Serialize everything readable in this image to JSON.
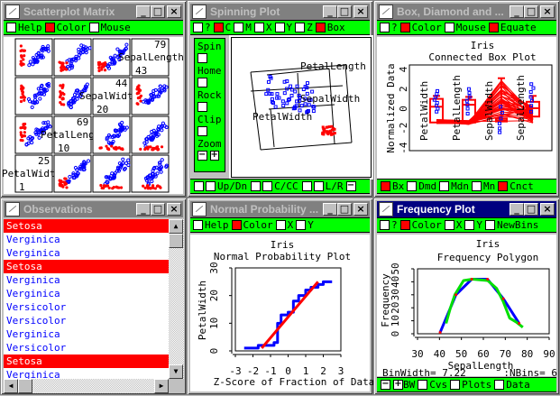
{
  "scatter": {
    "title": "Scatterplot Matrix",
    "options": [
      {
        "label": "Help",
        "checked": false
      },
      {
        "label": "Color",
        "checked": true
      },
      {
        "label": "Mouse",
        "checked": false
      }
    ],
    "variables": [
      {
        "name": "SepalLength",
        "max": "79",
        "min": "43"
      },
      {
        "name": "SepalWidth",
        "max": "44",
        "min": "20"
      },
      {
        "name": "PetalLength",
        "max": "69",
        "min": "10"
      },
      {
        "name": "PetalWidth",
        "max": "25",
        "min": "1"
      }
    ]
  },
  "spin": {
    "title": "Spinning Plot",
    "options": [
      {
        "label": "?",
        "checked": false
      },
      {
        "label": "C",
        "checked": true
      },
      {
        "label": "M",
        "checked": false
      },
      {
        "label": "X",
        "checked": false
      },
      {
        "label": "Y",
        "checked": false
      },
      {
        "label": "Z",
        "checked": false
      },
      {
        "label": "Box",
        "checked": true
      }
    ],
    "controls": [
      "Spin",
      "Home",
      "Rock",
      "Clip"
    ],
    "zoom_label": "Zoom",
    "axis_labels": {
      "x": "PetalLength",
      "y": "SepalWidth",
      "z": "PetalWidth"
    },
    "bottom": [
      "Up/Dn",
      "C/CC",
      "L/R"
    ]
  },
  "box": {
    "title": "Box, Diamond and ...",
    "options": [
      {
        "label": "?",
        "checked": false
      },
      {
        "label": "Color",
        "checked": true
      },
      {
        "label": "Mouse",
        "checked": false
      },
      {
        "label": "Equate",
        "checked": true
      }
    ],
    "bottom": [
      {
        "label": "Bx",
        "checked": true
      },
      {
        "label": "Dmd",
        "checked": false
      },
      {
        "label": "Mdn",
        "checked": false
      },
      {
        "label": "Mn",
        "checked": false
      },
      {
        "label": "Cnct",
        "checked": true
      }
    ]
  },
  "observations": {
    "title": "Observations",
    "items": [
      {
        "label": "Setosa",
        "selected": true
      },
      {
        "label": "Verginica",
        "selected": false
      },
      {
        "label": "Verginica",
        "selected": false
      },
      {
        "label": "Setosa",
        "selected": true
      },
      {
        "label": "Verginica",
        "selected": false
      },
      {
        "label": "Verginica",
        "selected": false
      },
      {
        "label": "Versicolor",
        "selected": false
      },
      {
        "label": "Versicolor",
        "selected": false
      },
      {
        "label": "Verginica",
        "selected": false
      },
      {
        "label": "Versicolor",
        "selected": false
      },
      {
        "label": "Setosa",
        "selected": true
      },
      {
        "label": "Verginica",
        "selected": false
      }
    ]
  },
  "normal": {
    "title": "Normal Probability ...",
    "options": [
      {
        "label": "Help",
        "checked": false
      },
      {
        "label": "Color",
        "checked": true
      },
      {
        "label": "X",
        "checked": false
      },
      {
        "label": "Y",
        "checked": false
      }
    ]
  },
  "freq": {
    "title": "Frequency Plot",
    "options": [
      {
        "label": "?",
        "checked": false
      },
      {
        "label": "Color",
        "checked": true
      },
      {
        "label": "X",
        "checked": false
      },
      {
        "label": "Y",
        "checked": false
      },
      {
        "label": "NewBins",
        "checked": false
      }
    ],
    "binwidth": "BinWidth= 7.22",
    "nbins": ":NBins= 6",
    "bottom": [
      {
        "label": "BW",
        "kind": "plus"
      },
      {
        "label": "Cvs",
        "kind": "check"
      },
      {
        "label": "Plots",
        "kind": "check"
      },
      {
        "label": "Data",
        "kind": "check"
      }
    ]
  },
  "colors": {
    "setosa": "#ff0000",
    "other": "#0000ff",
    "smooth": "#00e000",
    "toolbar": "#00ff00"
  },
  "chart_data": [
    {
      "id": "box",
      "type": "box",
      "title": "Iris",
      "subtitle": "Connected Box Plot",
      "ylabel": "Normalized Data",
      "yticks": [
        -4,
        -2,
        0,
        2,
        4
      ],
      "ylim": [
        -4,
        4
      ],
      "categories": [
        "PetalWidth",
        "PetalLength",
        "SepalWidth",
        "SepalLength"
      ],
      "boxes": [
        {
          "whisker_low": -1.5,
          "q1": -1.4,
          "median": 0.2,
          "q3": 1.0,
          "whisker_high": 1.3,
          "points": [
            1.8,
            1.5,
            1.2,
            0.9,
            0.6,
            0.3,
            0.0,
            -0.3
          ]
        },
        {
          "whisker_low": -1.5,
          "q1": -1.4,
          "median": 0.4,
          "q3": 0.9,
          "whisker_high": 1.2,
          "points": [
            2.0,
            1.6,
            1.2,
            0.8,
            0.4,
            0.0,
            -0.5
          ]
        },
        {
          "whisker_low": -1.3,
          "q1": -1.3,
          "median": -1.2,
          "q3": -1.0,
          "whisker_high": 3.1,
          "points": [
            0.2,
            -0.4,
            -1.0,
            -1.5,
            -2.0,
            -2.4
          ]
        },
        {
          "whisker_low": -0.8,
          "q1": -0.8,
          "median": 0.05,
          "q3": 0.7,
          "whisker_high": 1.3,
          "points": [
            2.5,
            2.1,
            1.7,
            1.2,
            0.8,
            0.3,
            -0.3
          ]
        }
      ]
    },
    {
      "id": "normal",
      "type": "line",
      "title": "Iris",
      "subtitle": "Normal Probability Plot",
      "xlabel": "Z-Score of Fraction of Data",
      "ylabel": "PetalWidth",
      "xticks": [
        -3,
        -2,
        -1,
        0,
        1,
        2,
        3
      ],
      "yticks": [
        0,
        10,
        20,
        30
      ],
      "xlim": [
        -3,
        3
      ],
      "ylim": [
        0,
        30
      ],
      "series": [
        {
          "name": "data",
          "color": "#0000ff",
          "step": true,
          "points": [
            [
              -2.5,
              1
            ],
            [
              -1.8,
              1
            ],
            [
              -1.7,
              2
            ],
            [
              -1.0,
              2
            ],
            [
              -0.8,
              3
            ],
            [
              -0.6,
              5
            ],
            [
              -0.6,
              10
            ],
            [
              -0.4,
              13
            ],
            [
              0,
              14
            ],
            [
              0.3,
              18
            ],
            [
              0.6,
              20
            ],
            [
              1.0,
              22
            ],
            [
              1.3,
              23
            ],
            [
              1.7,
              24
            ],
            [
              2.0,
              25
            ],
            [
              2.5,
              25
            ]
          ]
        },
        {
          "name": "fit",
          "color": "#ff0000",
          "step": false,
          "points": [
            [
              -1.5,
              1
            ],
            [
              1.7,
              25
            ]
          ]
        }
      ]
    },
    {
      "id": "freq",
      "type": "line",
      "title": "Iris",
      "subtitle": "Frequency Polygon",
      "xlabel": "SepalLength",
      "ylabel": "Frequency",
      "xticks": [
        30,
        40,
        50,
        60,
        70,
        80,
        90
      ],
      "yticks": [
        0,
        10,
        20,
        30,
        40,
        50
      ],
      "xlim": [
        30,
        90
      ],
      "ylim": [
        0,
        50
      ],
      "series": [
        {
          "name": "polygon",
          "color": "#0000ff",
          "points": [
            [
              40.3,
              1
            ],
            [
              47.5,
              30
            ],
            [
              54.7,
              42
            ],
            [
              61.9,
              42
            ],
            [
              69.1,
              27
            ],
            [
              76.3,
              8
            ]
          ]
        },
        {
          "name": "smooth",
          "color": "#00e000",
          "points": [
            [
              43,
              8
            ],
            [
              45,
              20
            ],
            [
              47,
              30
            ],
            [
              51,
              41
            ],
            [
              55,
              42
            ],
            [
              62,
              41
            ],
            [
              66,
              35
            ],
            [
              69,
              25
            ],
            [
              72,
              12
            ],
            [
              75,
              9
            ],
            [
              78,
              5
            ]
          ]
        }
      ]
    }
  ]
}
